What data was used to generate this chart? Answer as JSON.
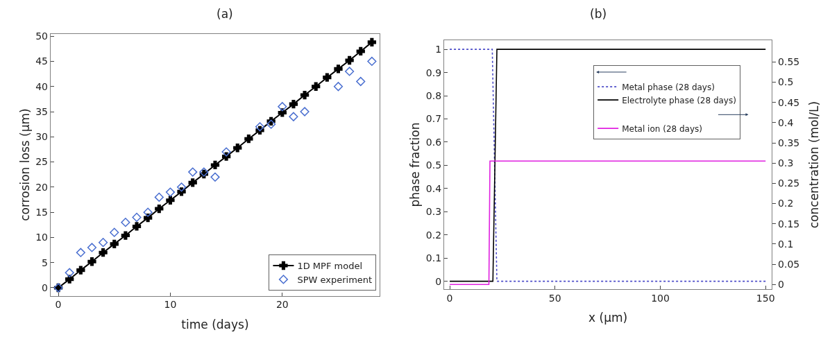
{
  "chart_data": [
    {
      "type": "scatter",
      "title": "(a)",
      "xlabel": "time (days)",
      "ylabel": "corrosion loss (µm)",
      "xlim": [
        -0.7,
        28.7
      ],
      "ylim": [
        -1.6,
        50.5
      ],
      "xticks": [
        0,
        10,
        20
      ],
      "yticks": [
        0,
        5,
        10,
        15,
        20,
        25,
        30,
        35,
        40,
        45,
        50
      ],
      "legend": "bottom right",
      "series": [
        {
          "name": "SPW experiment",
          "type": "scatter",
          "marker": "diamond",
          "color": "#4a6fd0",
          "x": [
            0,
            1,
            2,
            3,
            4,
            5,
            6,
            7,
            8,
            9,
            10,
            11,
            12,
            13,
            14,
            15,
            18,
            19,
            20,
            21,
            22,
            25,
            26,
            27,
            28
          ],
          "values": [
            0,
            3,
            7,
            8,
            9,
            11,
            13,
            14,
            15,
            18,
            19,
            20,
            23,
            23,
            22,
            27,
            32,
            32.5,
            36,
            34,
            35,
            40,
            43,
            41,
            45
          ]
        },
        {
          "name": "1D MPF model",
          "type": "line",
          "marker": "cross",
          "line_style": "solid",
          "color": "#000000",
          "x": [
            0,
            1,
            2,
            3,
            4,
            5,
            6,
            7,
            8,
            9,
            10,
            11,
            12,
            13,
            14,
            15,
            16,
            17,
            18,
            19,
            20,
            21,
            22,
            23,
            24,
            25,
            26,
            27,
            28
          ],
          "values": [
            0,
            1.7,
            3.5,
            5.2,
            7.0,
            8.7,
            10.4,
            12.2,
            13.9,
            15.7,
            17.4,
            19.1,
            20.9,
            22.6,
            24.4,
            26.1,
            27.8,
            29.6,
            31.3,
            33.1,
            34.8,
            36.5,
            38.3,
            40.0,
            41.8,
            43.5,
            45.2,
            47.0,
            48.8
          ]
        }
      ]
    },
    {
      "type": "line",
      "title": "(b)",
      "xlabel": "x (µm)",
      "ylabel": "phase fraction",
      "y2label": "concentration (mol/L)",
      "xlim": [
        -2.7,
        153
      ],
      "ylim": [
        -0.033,
        1.038
      ],
      "y2lim": [
        -0.011,
        0.603
      ],
      "xticks": [
        0,
        50,
        100,
        150
      ],
      "yticks": [
        0,
        0.1,
        0.2,
        0.3,
        0.4,
        0.5,
        0.6,
        0.7,
        0.8,
        0.9,
        1
      ],
      "y2ticks": [
        0,
        0.05,
        0.1,
        0.15,
        0.2,
        0.25,
        0.3,
        0.35,
        0.4,
        0.45,
        0.5,
        0.55
      ],
      "legend": "top right",
      "marker": "none",
      "series": [
        {
          "name": "Metal phase (28 days)",
          "color": "#4a4ac8",
          "line_style": "dotted",
          "axis": "y",
          "x": [
            0,
            20.2,
            22.4,
            150
          ],
          "values": [
            1,
            1,
            0,
            0
          ]
        },
        {
          "name": "Electrolyte phase (28 days)",
          "color": "#000000",
          "line_style": "solid",
          "axis": "y",
          "x": [
            0,
            20.5,
            22.4,
            150
          ],
          "values": [
            0,
            0,
            1,
            1
          ]
        },
        {
          "name": "Metal ion (28 days)",
          "color": "#e020e0",
          "line_style": "solid",
          "axis": "y2",
          "x": [
            0,
            18.6,
            19.1,
            150
          ],
          "values": [
            0,
            0,
            0.305,
            0.305
          ]
        }
      ]
    }
  ]
}
